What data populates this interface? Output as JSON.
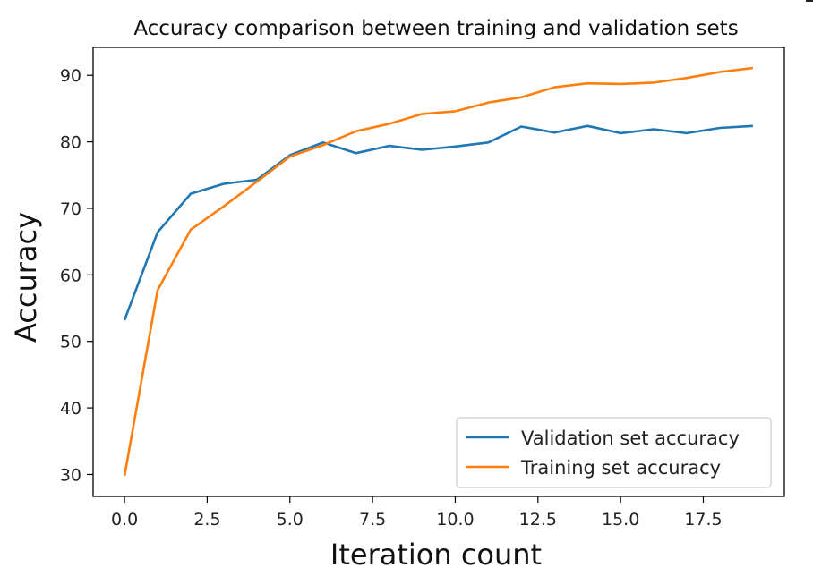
{
  "chart_data": {
    "type": "line",
    "title": "Accuracy comparison between training and validation sets",
    "xlabel": "Iteration count",
    "ylabel": "Accuracy",
    "x": [
      0,
      1,
      2,
      3,
      4,
      5,
      6,
      7,
      8,
      9,
      10,
      11,
      12,
      13,
      14,
      15,
      16,
      17,
      18,
      19
    ],
    "xlim": [
      -0.95,
      19.95
    ],
    "ylim": [
      26.7,
      94.2
    ],
    "xticks": [
      0.0,
      2.5,
      5.0,
      7.5,
      10.0,
      12.5,
      15.0,
      17.5
    ],
    "xtick_labels": [
      "0.0",
      "2.5",
      "5.0",
      "7.5",
      "10.0",
      "12.5",
      "15.0",
      "17.5"
    ],
    "yticks": [
      30,
      40,
      50,
      60,
      70,
      80,
      90
    ],
    "ytick_labels": [
      "30",
      "40",
      "50",
      "60",
      "70",
      "80",
      "90"
    ],
    "grid": false,
    "legend_position": "lower-right",
    "series": [
      {
        "name": "Validation set accuracy",
        "color": "#1f77b4",
        "values": [
          53.2,
          66.4,
          72.2,
          73.7,
          74.3,
          78.0,
          79.9,
          78.3,
          79.4,
          78.8,
          79.3,
          79.9,
          82.3,
          81.4,
          82.4,
          81.3,
          81.9,
          81.3,
          82.1,
          82.4
        ]
      },
      {
        "name": "Training set accuracy",
        "color": "#ff7f0e",
        "values": [
          29.8,
          57.7,
          66.8,
          70.3,
          74.0,
          77.8,
          79.5,
          81.6,
          82.7,
          84.2,
          84.6,
          85.9,
          86.7,
          88.2,
          88.8,
          88.7,
          88.9,
          89.6,
          90.5,
          91.1
        ]
      }
    ]
  }
}
